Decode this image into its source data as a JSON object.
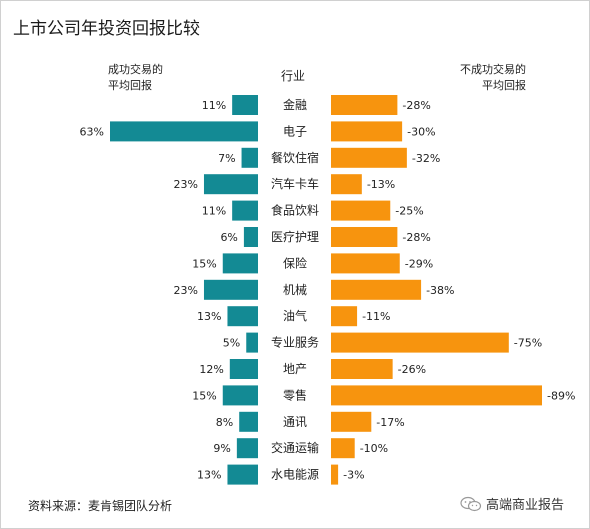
{
  "title": "上市公司年投资回报比较",
  "headers": {
    "left": [
      "成功交易的",
      "平均回报"
    ],
    "middle": "行业",
    "right": [
      "不成功交易的",
      "平均回报"
    ]
  },
  "footer": {
    "source": "资料来源：麦肯锡团队分析",
    "brand": "高端商业报告"
  },
  "colors": {
    "left_bar": "#138a94",
    "right_bar": "#f7940e"
  },
  "chart_data": {
    "type": "bar",
    "title": "上市公司年投资回报比较",
    "categories": [
      "金融",
      "电子",
      "餐饮住宿",
      "汽车卡车",
      "食品饮料",
      "医疗护理",
      "保险",
      "机械",
      "油气",
      "专业服务",
      "地产",
      "零售",
      "通讯",
      "交通运输",
      "水电能源"
    ],
    "series": [
      {
        "name": "成功交易的平均回报",
        "values": [
          11,
          63,
          7,
          23,
          11,
          6,
          15,
          23,
          13,
          5,
          12,
          15,
          8,
          9,
          13
        ],
        "labels": [
          "11%",
          "63%",
          "7%",
          "23%",
          "11%",
          "6%",
          "15%",
          "23%",
          "13%",
          "5%",
          "12%",
          "15%",
          "8%",
          "9%",
          "13%"
        ]
      },
      {
        "name": "不成功交易的平均回报",
        "values": [
          -28,
          -30,
          -32,
          -13,
          -25,
          -28,
          -29,
          -38,
          -11,
          -75,
          -26,
          -89,
          -17,
          -10,
          -3
        ],
        "labels": [
          "-28%",
          "-30%",
          "-32%",
          "-13%",
          "-25%",
          "-28%",
          "-29%",
          "-38%",
          "-11%",
          "-75%",
          "-26%",
          "-89%",
          "-17%",
          "-10%",
          "-3%"
        ]
      }
    ]
  }
}
